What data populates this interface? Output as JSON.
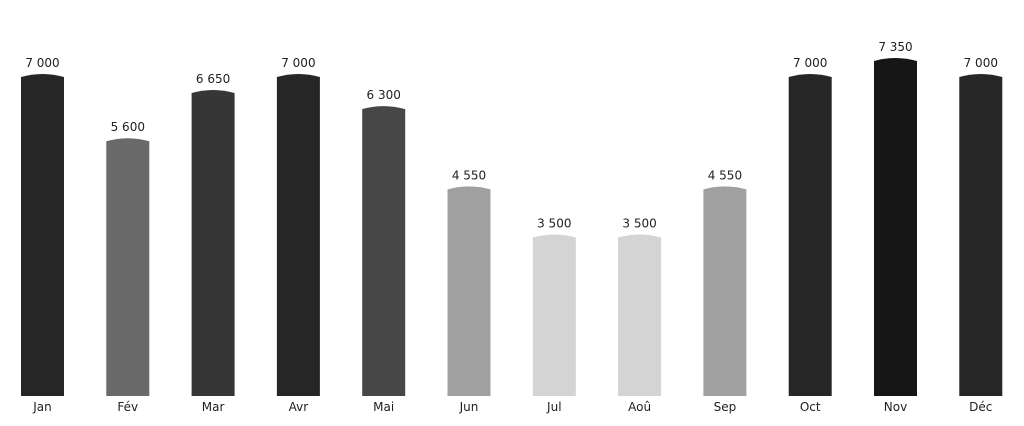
{
  "chart_data": {
    "type": "bar",
    "categories": [
      "Jan",
      "Fév",
      "Mar",
      "Avr",
      "Mai",
      "Jun",
      "Jul",
      "Aoû",
      "Sep",
      "Oct",
      "Nov",
      "Déc"
    ],
    "values": [
      7000,
      5600,
      6650,
      7000,
      6300,
      4550,
      3500,
      3500,
      4550,
      7000,
      7350,
      7000
    ],
    "value_labels": [
      "7 000",
      "5 600",
      "6 650",
      "7 000",
      "6 300",
      "4 550",
      "3 500",
      "3 500",
      "4 550",
      "7 000",
      "7 350",
      "7 000"
    ],
    "colors": [
      "#262626",
      "#6a6a6a",
      "#363636",
      "#262626",
      "#474747",
      "#a0a0a0",
      "#d4d4d4",
      "#d4d4d4",
      "#a0a0a0",
      "#262626",
      "#161616",
      "#262626"
    ],
    "title": "",
    "xlabel": "",
    "ylabel": "",
    "ylim": [
      0,
      7350
    ],
    "grid": false,
    "legend": "none"
  }
}
